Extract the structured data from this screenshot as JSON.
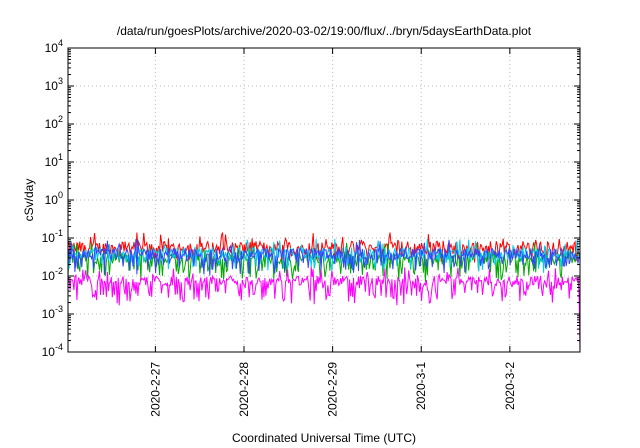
{
  "chart_data": {
    "type": "line",
    "title": "/data/run/goesPlots/archive/2020-03-02/19:00/flux/../bryn/5daysEarthData.plot",
    "xlabel": "Coordinated Universal Time (UTC)",
    "ylabel": "cSv/day",
    "yscale": "log",
    "ylim": [
      0.0001,
      10000
    ],
    "y_ticks": [
      {
        "base": "10",
        "exp": "-4"
      },
      {
        "base": "10",
        "exp": "-3"
      },
      {
        "base": "10",
        "exp": "-2"
      },
      {
        "base": "10",
        "exp": "-1"
      },
      {
        "base": "10",
        "exp": "0"
      },
      {
        "base": "10",
        "exp": "1"
      },
      {
        "base": "10",
        "exp": "2"
      },
      {
        "base": "10",
        "exp": "3"
      },
      {
        "base": "10",
        "exp": "4"
      }
    ],
    "xlim": [
      "2020-02-26 00:20",
      "2020-03-02 19:00"
    ],
    "x_ticks": [
      "2020-2-27",
      "2020-2-28",
      "2020-2-29",
      "2020-3-1",
      "2020-3-2"
    ],
    "grid": true,
    "legend": "none",
    "series": [
      {
        "color": "#ff0000",
        "base": 0.055,
        "spread": 0.35,
        "dips": 0.15,
        "dip_depth": 0.3
      },
      {
        "color": "#00aa00",
        "base": 0.03,
        "spread": 0.3,
        "dips": 0.25,
        "dip_depth": 0.5
      },
      {
        "color": "#00ccee",
        "base": 0.04,
        "spread": 0.3,
        "dips": 0.2,
        "dip_depth": 0.4
      },
      {
        "color": "#3344ff",
        "base": 0.038,
        "spread": 0.3,
        "dips": 0.2,
        "dip_depth": 0.45
      },
      {
        "color": "#ff00ff",
        "base": 0.0075,
        "spread": 0.25,
        "dips": 0.3,
        "dip_depth": -0.9,
        "final_drop": 0.0001
      }
    ]
  }
}
